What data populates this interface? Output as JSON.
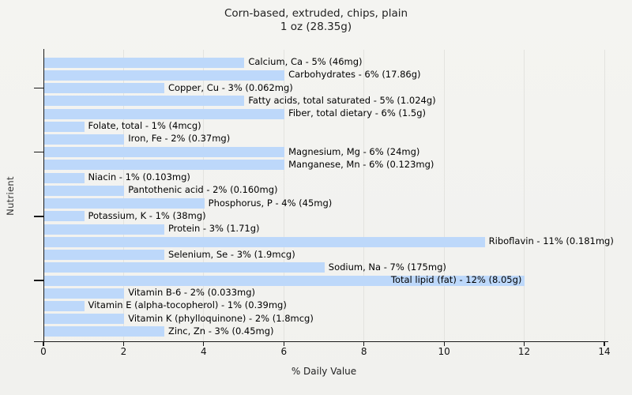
{
  "chart": {
    "title_line1": "Corn-based, extruded, chips, plain",
    "title_line2": "1 oz (28.35g)",
    "xlabel": "% Daily Value",
    "ylabel": "Nutrient"
  },
  "colors": {
    "background": "#f2f2ef",
    "bar": "#bdd8fa",
    "gridline": "#e3e3df",
    "axis": "#1a1a1a"
  },
  "chart_data": {
    "type": "bar",
    "orientation": "horizontal",
    "title": "Corn-based, extruded, chips, plain",
    "subtitle": "1 oz (28.35g)",
    "xlabel": "% Daily Value",
    "ylabel": "Nutrient",
    "xlim": [
      0,
      14
    ],
    "x_ticks": [
      0,
      2,
      4,
      6,
      8,
      10,
      12,
      14
    ],
    "grid": "vertical-only",
    "legend": "none",
    "bars": [
      {
        "name": "Calcium, Ca",
        "percent": 5,
        "amount": "46mg"
      },
      {
        "name": "Carbohydrates",
        "percent": 6,
        "amount": "17.86g"
      },
      {
        "name": "Copper, Cu",
        "percent": 3,
        "amount": "0.062mg"
      },
      {
        "name": "Fatty acids, total saturated",
        "percent": 5,
        "amount": "1.024g"
      },
      {
        "name": "Fiber, total dietary",
        "percent": 6,
        "amount": "1.5g"
      },
      {
        "name": "Folate, total",
        "percent": 1,
        "amount": "4mcg"
      },
      {
        "name": "Iron, Fe",
        "percent": 2,
        "amount": "0.37mg"
      },
      {
        "name": "Magnesium, Mg",
        "percent": 6,
        "amount": "24mg"
      },
      {
        "name": "Manganese, Mn",
        "percent": 6,
        "amount": "0.123mg"
      },
      {
        "name": "Niacin",
        "percent": 1,
        "amount": "0.103mg"
      },
      {
        "name": "Pantothenic acid",
        "percent": 2,
        "amount": "0.160mg"
      },
      {
        "name": "Phosphorus, P",
        "percent": 4,
        "amount": "45mg"
      },
      {
        "name": "Potassium, K",
        "percent": 1,
        "amount": "38mg"
      },
      {
        "name": "Protein",
        "percent": 3,
        "amount": "1.71g"
      },
      {
        "name": "Riboflavin",
        "percent": 11,
        "amount": "0.181mg"
      },
      {
        "name": "Selenium, Se",
        "percent": 3,
        "amount": "1.9mcg"
      },
      {
        "name": "Sodium, Na",
        "percent": 7,
        "amount": "175mg"
      },
      {
        "name": "Total lipid (fat)",
        "percent": 12,
        "amount": "8.05g",
        "label_inside": true
      },
      {
        "name": "Vitamin B-6",
        "percent": 2,
        "amount": "0.033mg"
      },
      {
        "name": "Vitamin E (alpha-tocopherol)",
        "percent": 1,
        "amount": "0.39mg"
      },
      {
        "name": "Vitamin K (phylloquinone)",
        "percent": 2,
        "amount": "1.8mcg"
      },
      {
        "name": "Zinc, Zn",
        "percent": 3,
        "amount": "0.45mg"
      }
    ]
  }
}
